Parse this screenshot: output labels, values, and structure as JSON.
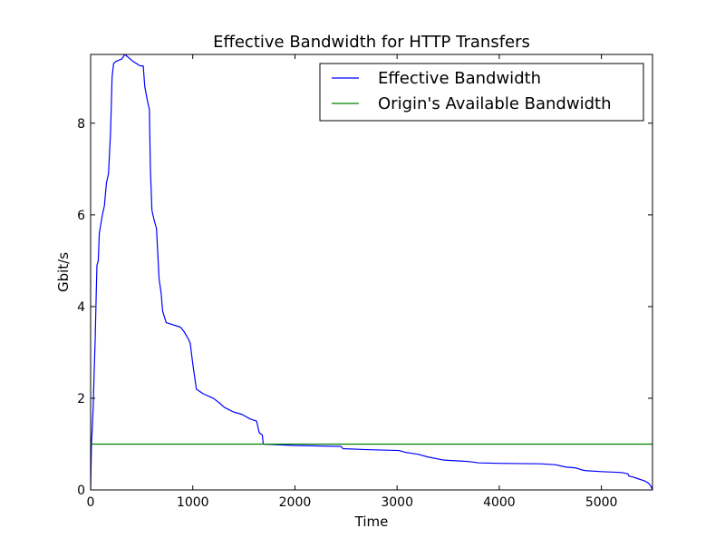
{
  "chart_data": {
    "type": "line",
    "title": "Effective Bandwidth for HTTP Transfers",
    "xlabel": "Time",
    "ylabel": "Gbit/s",
    "xlim": [
      0,
      5500
    ],
    "ylim": [
      0,
      9.5
    ],
    "xticks": [
      0,
      1000,
      2000,
      3000,
      4000,
      5000
    ],
    "yticks": [
      0,
      2,
      4,
      6,
      8
    ],
    "legend_position": "top-right",
    "grid": false,
    "series": [
      {
        "name": "Effective Bandwidth",
        "color": "#0000ff",
        "points": [
          [
            0,
            0
          ],
          [
            8,
            1.0
          ],
          [
            15,
            1.3
          ],
          [
            25,
            1.8
          ],
          [
            35,
            2.6
          ],
          [
            45,
            3.3
          ],
          [
            55,
            4.3
          ],
          [
            62,
            4.9
          ],
          [
            75,
            5.0
          ],
          [
            85,
            5.6
          ],
          [
            100,
            5.8
          ],
          [
            115,
            6.0
          ],
          [
            135,
            6.2
          ],
          [
            155,
            6.7
          ],
          [
            175,
            6.9
          ],
          [
            195,
            7.8
          ],
          [
            210,
            9.0
          ],
          [
            225,
            9.3
          ],
          [
            250,
            9.35
          ],
          [
            305,
            9.4
          ],
          [
            335,
            9.5
          ],
          [
            415,
            9.35
          ],
          [
            485,
            9.25
          ],
          [
            515,
            9.25
          ],
          [
            530,
            8.8
          ],
          [
            555,
            8.5
          ],
          [
            575,
            8.3
          ],
          [
            585,
            7.0
          ],
          [
            600,
            6.1
          ],
          [
            620,
            5.9
          ],
          [
            645,
            5.7
          ],
          [
            670,
            4.6
          ],
          [
            690,
            4.3
          ],
          [
            705,
            3.9
          ],
          [
            740,
            3.65
          ],
          [
            880,
            3.55
          ],
          [
            915,
            3.45
          ],
          [
            955,
            3.3
          ],
          [
            975,
            3.2
          ],
          [
            1000,
            2.75
          ],
          [
            1035,
            2.2
          ],
          [
            1100,
            2.1
          ],
          [
            1200,
            2.0
          ],
          [
            1260,
            1.9
          ],
          [
            1310,
            1.8
          ],
          [
            1400,
            1.7
          ],
          [
            1480,
            1.65
          ],
          [
            1560,
            1.55
          ],
          [
            1625,
            1.5
          ],
          [
            1650,
            1.25
          ],
          [
            1680,
            1.2
          ],
          [
            1690,
            1.0
          ],
          [
            2000,
            0.97
          ],
          [
            2450,
            0.95
          ],
          [
            2470,
            0.9
          ],
          [
            2700,
            0.88
          ],
          [
            3020,
            0.86
          ],
          [
            3080,
            0.82
          ],
          [
            3200,
            0.78
          ],
          [
            3300,
            0.72
          ],
          [
            3460,
            0.65
          ],
          [
            3700,
            0.62
          ],
          [
            3800,
            0.59
          ],
          [
            4000,
            0.58
          ],
          [
            4400,
            0.57
          ],
          [
            4550,
            0.55
          ],
          [
            4650,
            0.5
          ],
          [
            4750,
            0.48
          ],
          [
            4820,
            0.43
          ],
          [
            4850,
            0.42
          ],
          [
            5000,
            0.4
          ],
          [
            5200,
            0.38
          ],
          [
            5260,
            0.35
          ],
          [
            5270,
            0.3
          ],
          [
            5310,
            0.28
          ],
          [
            5350,
            0.25
          ],
          [
            5420,
            0.2
          ],
          [
            5460,
            0.15
          ],
          [
            5485,
            0.08
          ],
          [
            5500,
            0.0
          ]
        ]
      },
      {
        "name": "Origin's Available Bandwidth",
        "color": "#008000",
        "points": [
          [
            0,
            1.0
          ],
          [
            5500,
            1.0
          ]
        ]
      }
    ]
  }
}
